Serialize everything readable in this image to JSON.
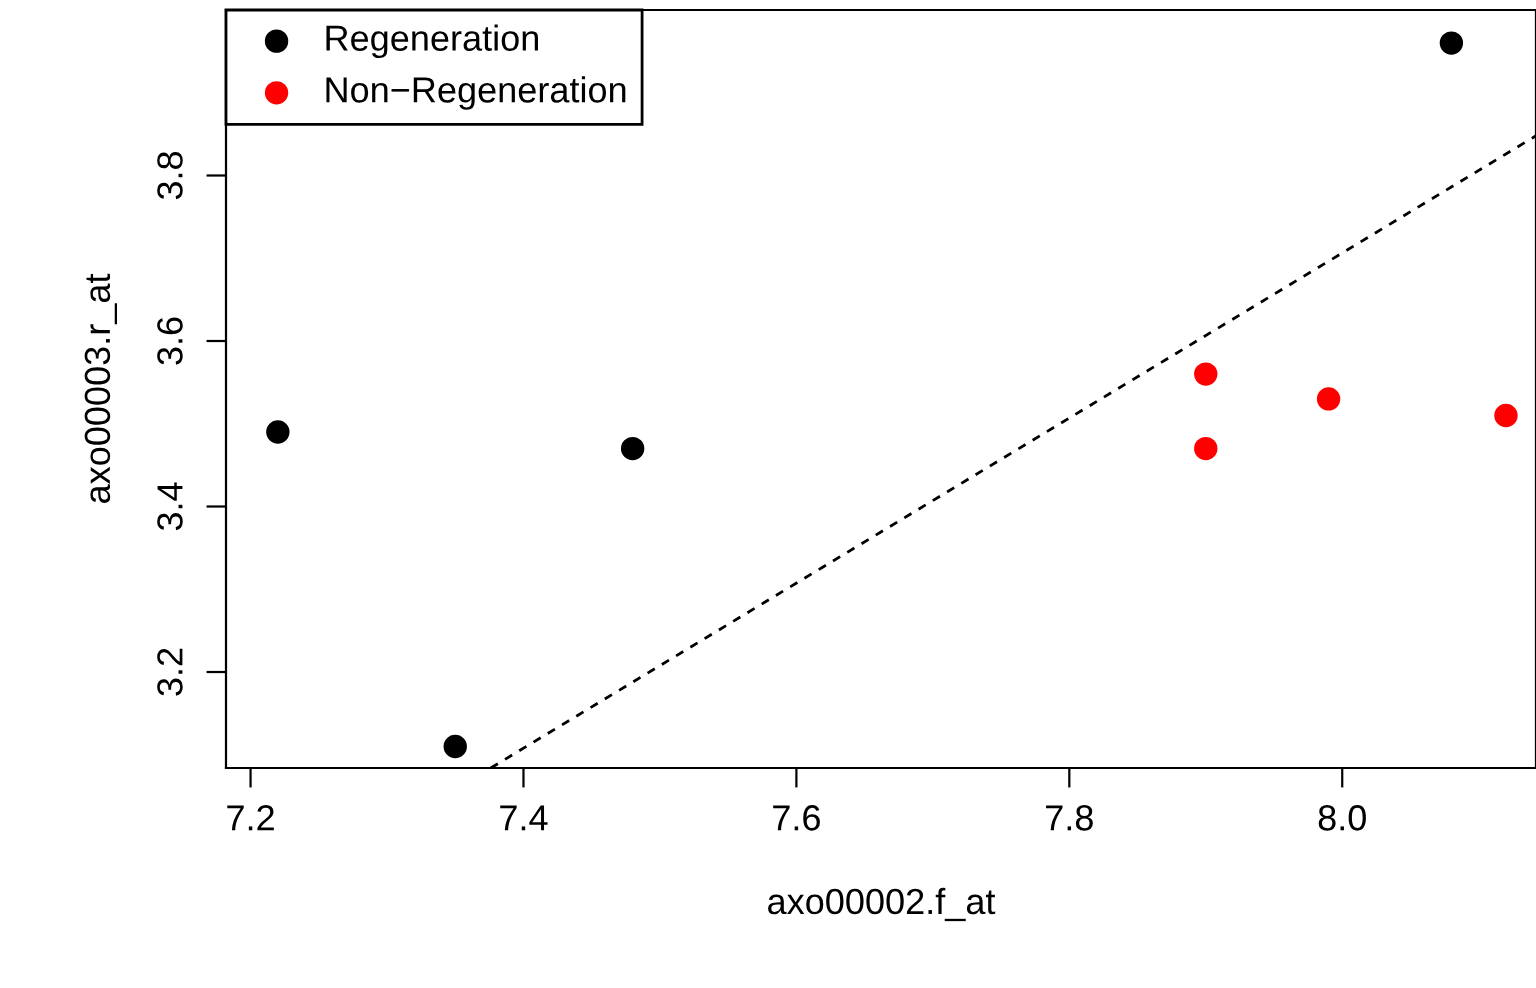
{
  "chart_data": {
    "type": "scatter",
    "xlabel": "axo00002.f_at",
    "ylabel": "axo00003.r_at",
    "xlim": [
      7.182,
      8.142
    ],
    "ylim": [
      3.084,
      4.0
    ],
    "xticks": [
      7.2,
      7.4,
      7.6,
      7.8,
      {
        "value": 8.0,
        "label": "8.0"
      }
    ],
    "yticks": [
      3.2,
      3.4,
      3.6,
      3.8
    ],
    "grid": false,
    "legend": "top left",
    "marker": "circle",
    "series": [
      {
        "name": "Regeneration",
        "color": "#000000",
        "x": [
          7.22,
          7.35,
          7.48,
          8.08
        ],
        "values": [
          3.49,
          3.11,
          3.47,
          3.96
        ]
      },
      {
        "name": "Non−Regeneration",
        "color": "#ff0000",
        "x": [
          7.9,
          7.9,
          7.99,
          8.12
        ],
        "values": [
          3.56,
          3.47,
          3.53,
          3.51
        ]
      },
      {
        "type": "line",
        "color": "#000000",
        "line_style": "dashed",
        "marker": "none",
        "x": [
          7.376,
          8.142
        ],
        "values": [
          3.084,
          3.848
        ]
      }
    ]
  }
}
